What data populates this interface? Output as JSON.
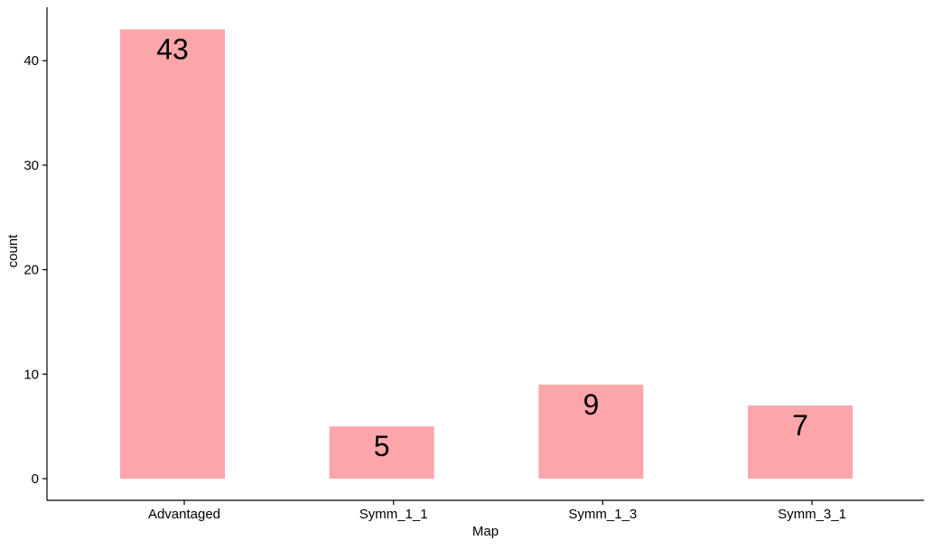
{
  "chart_data": {
    "type": "bar",
    "categories": [
      "Advantaged",
      "Symm_1_1",
      "Symm_1_3",
      "Symm_3_1"
    ],
    "values": [
      43,
      5,
      9,
      7
    ],
    "data_labels": [
      "43",
      "5",
      "9",
      "7"
    ],
    "title": "",
    "xlabel": "Map",
    "ylabel": "count",
    "ylim": [
      0,
      45
    ],
    "yticks": [
      0,
      10,
      20,
      30,
      40
    ],
    "grid": false,
    "bar_color": "#fca6ab"
  }
}
